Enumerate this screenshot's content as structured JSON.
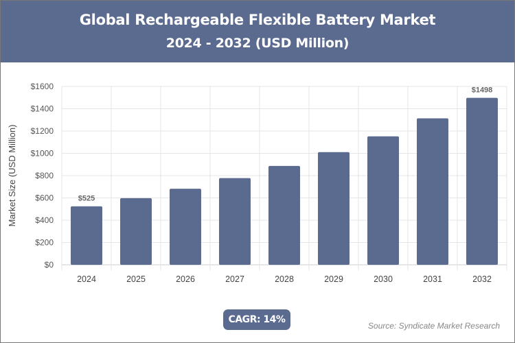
{
  "header": {
    "title": "Global Rechargeable Flexible Battery Market",
    "subtitle": "2024 - 2032 (USD Million)"
  },
  "chart_data": {
    "type": "bar",
    "categories": [
      "2024",
      "2025",
      "2026",
      "2027",
      "2028",
      "2029",
      "2030",
      "2031",
      "2032"
    ],
    "values": [
      525,
      598,
      682,
      778,
      887,
      1011,
      1152,
      1314,
      1498
    ],
    "data_labels": {
      "0": "$525",
      "8": "$1498"
    },
    "ylabel": "Market Size (USD Million)",
    "xlabel": "",
    "ylim": [
      0,
      1600
    ],
    "yticks": [
      "$0",
      "$200",
      "$400",
      "$600",
      "$800",
      "$1000",
      "$1200",
      "$1400",
      "$1600"
    ],
    "grid": true,
    "bar_color": "#5b6a8f"
  },
  "cagr": "CAGR: 14%",
  "source": "Source: Syndicate Market Research"
}
